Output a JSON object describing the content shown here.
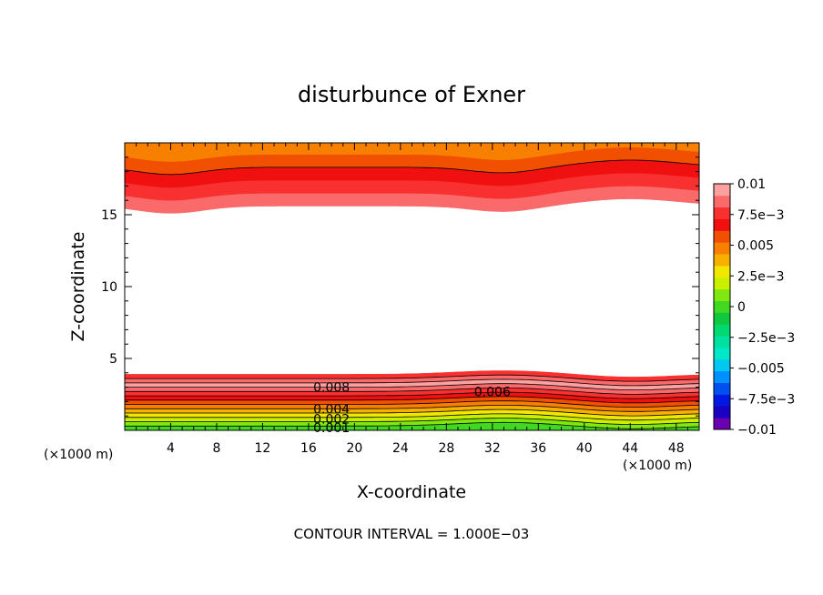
{
  "chart_data": {
    "type": "heatmap",
    "title": "disturbunce of Exner",
    "xlabel": "X-coordinate",
    "ylabel": "Z-coordinate",
    "x_unit": "(×1000 m)",
    "y_unit": "(×1000 m)",
    "xlim": [
      0,
      50
    ],
    "ylim": [
      0,
      20
    ],
    "x_ticks": [
      4,
      8,
      12,
      16,
      20,
      24,
      28,
      32,
      36,
      40,
      44,
      48
    ],
    "y_ticks": [
      5,
      10,
      15
    ],
    "grid": false,
    "legend": "right",
    "colorbar": {
      "min": -0.01,
      "max": 0.01,
      "levels": [
        -0.01,
        -0.009,
        -0.008,
        -0.007,
        -0.006,
        -0.005,
        -0.004,
        -0.003,
        -0.002,
        -0.001,
        0,
        0.001,
        0.002,
        0.003,
        0.004,
        0.005,
        0.006,
        0.007,
        0.008,
        0.009,
        0.01
      ],
      "colors": [
        "#6a00b0",
        "#1a00c0",
        "#0018e0",
        "#0050f0",
        "#0090ff",
        "#00c8f0",
        "#00e8c8",
        "#00e0a0",
        "#00d870",
        "#10c840",
        "#40d820",
        "#80e810",
        "#c8f000",
        "#f0e800",
        "#f8b000",
        "#f88000",
        "#f05000",
        "#f01010",
        "#f83030",
        "#fa6a6a",
        "#fca0a0"
      ],
      "tick_labels": [
        "0.01",
        "7.5e−3",
        "0.005",
        "2.5e−3",
        "0",
        "−2.5e−3",
        "−0.005",
        "−7.5e−3",
        "−0.01"
      ]
    },
    "contour_labels": [
      {
        "text": "0.008",
        "x": 18,
        "z": 3.0
      },
      {
        "text": "0.006",
        "x": 32,
        "z": 2.7
      },
      {
        "text": "0.004",
        "x": 18,
        "z": 1.5
      },
      {
        "text": "0.002",
        "x": 18,
        "z": 0.8
      },
      {
        "text": "0.001",
        "x": 18,
        "z": 0.2
      }
    ],
    "contour_interval_label": "CONTOUR INTERVAL = 1.000E−03"
  }
}
